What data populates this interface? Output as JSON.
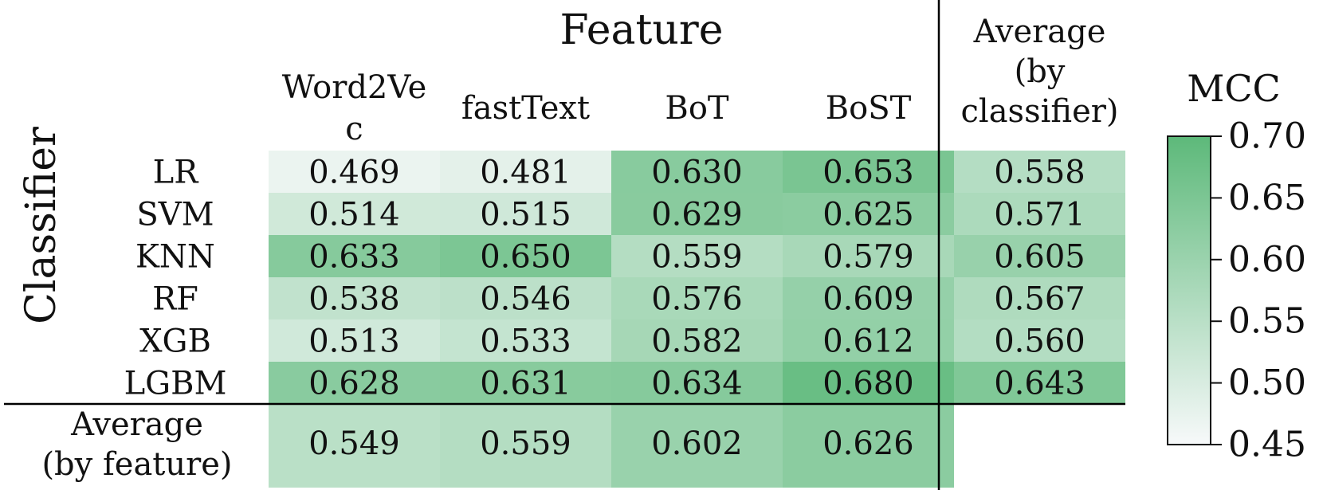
{
  "chart_data": {
    "type": "heatmap",
    "title_top": "Feature",
    "title_left": "Classifier",
    "columns": [
      "Word2Vec",
      "fastText",
      "BoT",
      "BoST"
    ],
    "column_labels": [
      [
        "Word2Ve",
        "c"
      ],
      [
        "fastText"
      ],
      [
        "BoT"
      ],
      [
        "BoST"
      ]
    ],
    "avg_column_label": [
      "Average",
      "(by",
      "classifier)"
    ],
    "rows": [
      "LR",
      "SVM",
      "KNN",
      "RF",
      "XGB",
      "LGBM"
    ],
    "values": [
      [
        0.469,
        0.481,
        0.63,
        0.653
      ],
      [
        0.514,
        0.515,
        0.629,
        0.625
      ],
      [
        0.633,
        0.65,
        0.559,
        0.579
      ],
      [
        0.538,
        0.546,
        0.576,
        0.609
      ],
      [
        0.513,
        0.533,
        0.582,
        0.612
      ],
      [
        0.628,
        0.631,
        0.634,
        0.68
      ]
    ],
    "avg_by_classifier": [
      0.558,
      0.571,
      0.605,
      0.567,
      0.56,
      0.643
    ],
    "avg_row_label": [
      "Average",
      "(by feature)"
    ],
    "avg_by_feature": [
      0.549,
      0.559,
      0.602,
      0.626
    ],
    "colorbar": {
      "label": "MCC",
      "range": [
        0.45,
        0.7
      ],
      "ticks": [
        "0.70",
        "0.65",
        "0.60",
        "0.55",
        "0.50",
        "0.45"
      ],
      "low_color": "#f7f9fa",
      "high_color": "#5db97a"
    }
  }
}
